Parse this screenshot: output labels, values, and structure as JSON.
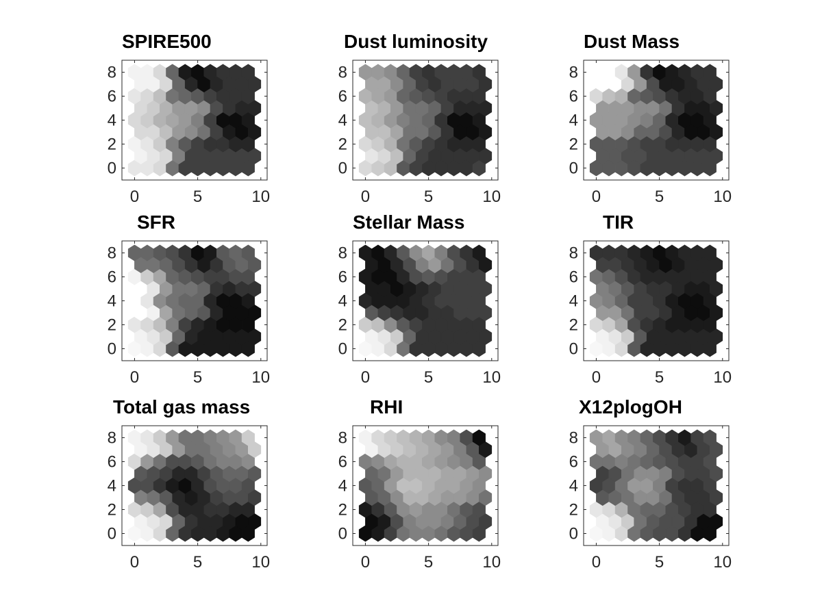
{
  "chart_data": [
    {
      "type": "heatmap",
      "title": "SPIRE500",
      "xlabel": "",
      "ylabel": "",
      "xlim": [
        -1,
        10.5
      ],
      "ylim": [
        -1,
        9
      ],
      "xticks": [
        0,
        5,
        10
      ],
      "yticks": [
        0,
        2,
        4,
        6,
        8
      ],
      "grid_size": [
        10,
        9
      ],
      "colormap": "gray",
      "value_range": [
        0,
        1
      ],
      "grid": [
        [
          0.9,
          0.9,
          0.85,
          0.45,
          0.25,
          0.25,
          0.25,
          0.25,
          0.25,
          0.25
        ],
        [
          0.95,
          0.9,
          0.85,
          0.5,
          0.25,
          0.25,
          0.25,
          0.25,
          0.25,
          0.25
        ],
        [
          0.95,
          0.9,
          0.8,
          0.5,
          0.35,
          0.25,
          0.2,
          0.2,
          0.15,
          0.15
        ],
        [
          0.85,
          0.85,
          0.75,
          0.6,
          0.55,
          0.45,
          0.25,
          0.1,
          0.05,
          0.1
        ],
        [
          0.85,
          0.8,
          0.7,
          0.65,
          0.6,
          0.5,
          0.25,
          0.05,
          0.05,
          0.1
        ],
        [
          0.85,
          0.8,
          0.7,
          0.6,
          0.6,
          0.55,
          0.3,
          0.2,
          0.15,
          0.15
        ],
        [
          0.9,
          0.85,
          0.75,
          0.45,
          0.4,
          0.35,
          0.25,
          0.2,
          0.2,
          0.2
        ],
        [
          0.95,
          0.95,
          0.85,
          0.4,
          0.15,
          0.05,
          0.15,
          0.2,
          0.2,
          0.2
        ],
        [
          0.95,
          0.95,
          0.85,
          0.4,
          0.1,
          0.05,
          0.15,
          0.2,
          0.2,
          0.2
        ]
      ]
    },
    {
      "type": "heatmap",
      "title": "Dust luminosity",
      "xlabel": "",
      "ylabel": "",
      "xlim": [
        -1,
        10.5
      ],
      "ylim": [
        -1,
        9
      ],
      "xticks": [
        0,
        5,
        10
      ],
      "yticks": [
        0,
        2,
        4,
        6,
        8
      ],
      "grid_size": [
        10,
        9
      ],
      "colormap": "gray",
      "value_range": [
        0,
        1
      ],
      "grid": [
        [
          0.85,
          0.8,
          0.75,
          0.35,
          0.25,
          0.2,
          0.2,
          0.2,
          0.2,
          0.25
        ],
        [
          0.9,
          0.85,
          0.75,
          0.4,
          0.25,
          0.2,
          0.2,
          0.2,
          0.2,
          0.2
        ],
        [
          0.85,
          0.8,
          0.7,
          0.45,
          0.35,
          0.25,
          0.2,
          0.15,
          0.15,
          0.15
        ],
        [
          0.75,
          0.75,
          0.65,
          0.45,
          0.45,
          0.35,
          0.2,
          0.05,
          0.05,
          0.1
        ],
        [
          0.75,
          0.7,
          0.6,
          0.5,
          0.45,
          0.4,
          0.2,
          0.05,
          0.05,
          0.1
        ],
        [
          0.75,
          0.7,
          0.6,
          0.45,
          0.45,
          0.4,
          0.25,
          0.15,
          0.15,
          0.15
        ],
        [
          0.7,
          0.65,
          0.6,
          0.4,
          0.35,
          0.3,
          0.25,
          0.2,
          0.2,
          0.2
        ],
        [
          0.65,
          0.65,
          0.55,
          0.4,
          0.25,
          0.2,
          0.25,
          0.25,
          0.25,
          0.2
        ],
        [
          0.6,
          0.6,
          0.55,
          0.4,
          0.25,
          0.2,
          0.25,
          0.25,
          0.25,
          0.2
        ]
      ]
    },
    {
      "type": "heatmap",
      "title": "Dust Mass",
      "xlabel": "",
      "ylabel": "",
      "xlim": [
        -1,
        10.5
      ],
      "ylim": [
        -1,
        9
      ],
      "xticks": [
        0,
        5,
        10
      ],
      "yticks": [
        0,
        2,
        4,
        6,
        8
      ],
      "grid_size": [
        10,
        9
      ],
      "colormap": "gray",
      "value_range": [
        0,
        1
      ],
      "grid": [
        [
          0.35,
          0.35,
          0.35,
          0.3,
          0.25,
          0.25,
          0.25,
          0.25,
          0.25,
          0.25
        ],
        [
          0.35,
          0.35,
          0.3,
          0.3,
          0.25,
          0.25,
          0.25,
          0.25,
          0.25,
          0.25
        ],
        [
          0.35,
          0.35,
          0.35,
          0.3,
          0.25,
          0.25,
          0.2,
          0.2,
          0.2,
          0.2
        ],
        [
          0.6,
          0.6,
          0.55,
          0.4,
          0.4,
          0.3,
          0.15,
          0.05,
          0.05,
          0.1
        ],
        [
          0.6,
          0.6,
          0.6,
          0.55,
          0.5,
          0.4,
          0.15,
          0.05,
          0.05,
          0.1
        ],
        [
          0.6,
          0.6,
          0.6,
          0.55,
          0.55,
          0.45,
          0.2,
          0.1,
          0.1,
          0.15
        ],
        [
          0.85,
          0.75,
          0.7,
          0.4,
          0.35,
          0.3,
          0.2,
          0.15,
          0.15,
          0.2
        ],
        [
          1.0,
          1.0,
          0.85,
          0.6,
          0.3,
          0.1,
          0.1,
          0.15,
          0.2,
          0.2
        ],
        [
          1.0,
          1.0,
          0.9,
          0.6,
          0.2,
          0.05,
          0.1,
          0.15,
          0.2,
          0.2
        ]
      ]
    },
    {
      "type": "heatmap",
      "title": "SFR",
      "xlabel": "",
      "ylabel": "",
      "xlim": [
        -1,
        10.5
      ],
      "ylim": [
        -1,
        9
      ],
      "xticks": [
        0,
        5,
        10
      ],
      "yticks": [
        0,
        2,
        4,
        6,
        8
      ],
      "grid_size": [
        10,
        9
      ],
      "colormap": "gray",
      "value_range": [
        0,
        1
      ],
      "grid": [
        [
          0.97,
          0.95,
          0.85,
          0.35,
          0.1,
          0.1,
          0.1,
          0.1,
          0.1,
          0.1
        ],
        [
          0.95,
          0.9,
          0.8,
          0.4,
          0.15,
          0.1,
          0.1,
          0.1,
          0.1,
          0.1
        ],
        [
          0.9,
          0.85,
          0.75,
          0.5,
          0.25,
          0.15,
          0.1,
          0.05,
          0.05,
          0.05
        ],
        [
          1.0,
          0.95,
          0.65,
          0.45,
          0.4,
          0.35,
          0.15,
          0.05,
          0.05,
          0.05
        ],
        [
          1.0,
          0.9,
          0.55,
          0.45,
          0.4,
          0.4,
          0.15,
          0.05,
          0.05,
          0.1
        ],
        [
          1.0,
          0.9,
          0.6,
          0.45,
          0.45,
          0.4,
          0.2,
          0.15,
          0.2,
          0.2
        ],
        [
          0.95,
          0.8,
          0.65,
          0.4,
          0.35,
          0.3,
          0.25,
          0.25,
          0.3,
          0.3
        ],
        [
          0.45,
          0.45,
          0.4,
          0.3,
          0.2,
          0.1,
          0.2,
          0.35,
          0.4,
          0.35
        ],
        [
          0.4,
          0.4,
          0.35,
          0.3,
          0.2,
          0.05,
          0.1,
          0.35,
          0.4,
          0.35
        ]
      ]
    },
    {
      "type": "heatmap",
      "title": "Stellar Mass",
      "xlabel": "",
      "ylabel": "",
      "xlim": [
        -1,
        10.5
      ],
      "ylim": [
        -1,
        9
      ],
      "xticks": [
        0,
        5,
        10
      ],
      "yticks": [
        0,
        2,
        4,
        6,
        8
      ],
      "grid_size": [
        10,
        9
      ],
      "colormap": "gray",
      "value_range": [
        0,
        1
      ],
      "grid": [
        [
          0.97,
          0.95,
          0.85,
          0.45,
          0.2,
          0.2,
          0.2,
          0.2,
          0.2,
          0.2
        ],
        [
          0.95,
          0.9,
          0.8,
          0.4,
          0.2,
          0.2,
          0.2,
          0.2,
          0.2,
          0.2
        ],
        [
          0.8,
          0.75,
          0.55,
          0.35,
          0.25,
          0.2,
          0.2,
          0.2,
          0.2,
          0.2
        ],
        [
          0.35,
          0.25,
          0.2,
          0.15,
          0.15,
          0.2,
          0.2,
          0.25,
          0.25,
          0.25
        ],
        [
          0.15,
          0.1,
          0.1,
          0.1,
          0.15,
          0.2,
          0.25,
          0.25,
          0.25,
          0.25
        ],
        [
          0.1,
          0.1,
          0.05,
          0.1,
          0.15,
          0.2,
          0.25,
          0.25,
          0.25,
          0.25
        ],
        [
          0.1,
          0.05,
          0.05,
          0.15,
          0.3,
          0.35,
          0.3,
          0.25,
          0.25,
          0.25
        ],
        [
          0.1,
          0.05,
          0.15,
          0.3,
          0.5,
          0.6,
          0.45,
          0.3,
          0.2,
          0.1
        ],
        [
          0.1,
          0.05,
          0.15,
          0.35,
          0.55,
          0.65,
          0.5,
          0.3,
          0.2,
          0.1
        ]
      ]
    },
    {
      "type": "heatmap",
      "title": "TIR",
      "xlabel": "",
      "ylabel": "",
      "xlim": [
        -1,
        10.5
      ],
      "ylim": [
        -1,
        9
      ],
      "xticks": [
        0,
        5,
        10
      ],
      "yticks": [
        0,
        2,
        4,
        6,
        8
      ],
      "grid_size": [
        10,
        9
      ],
      "colormap": "gray",
      "value_range": [
        0,
        1
      ],
      "grid": [
        [
          0.97,
          0.95,
          0.85,
          0.35,
          0.15,
          0.15,
          0.15,
          0.15,
          0.15,
          0.15
        ],
        [
          0.95,
          0.9,
          0.8,
          0.35,
          0.15,
          0.15,
          0.15,
          0.15,
          0.15,
          0.15
        ],
        [
          0.85,
          0.8,
          0.65,
          0.3,
          0.2,
          0.15,
          0.1,
          0.1,
          0.1,
          0.1
        ],
        [
          0.6,
          0.6,
          0.45,
          0.25,
          0.25,
          0.2,
          0.1,
          0.05,
          0.05,
          0.1
        ],
        [
          0.55,
          0.5,
          0.4,
          0.25,
          0.25,
          0.2,
          0.1,
          0.05,
          0.05,
          0.1
        ],
        [
          0.5,
          0.45,
          0.35,
          0.25,
          0.2,
          0.2,
          0.15,
          0.1,
          0.1,
          0.15
        ],
        [
          0.45,
          0.4,
          0.3,
          0.2,
          0.15,
          0.15,
          0.15,
          0.15,
          0.15,
          0.15
        ],
        [
          0.25,
          0.25,
          0.2,
          0.15,
          0.1,
          0.05,
          0.1,
          0.15,
          0.15,
          0.15
        ],
        [
          0.2,
          0.2,
          0.2,
          0.15,
          0.1,
          0.05,
          0.1,
          0.15,
          0.15,
          0.15
        ]
      ]
    },
    {
      "type": "heatmap",
      "title": "Total gas mass",
      "xlabel": "",
      "ylabel": "",
      "xlim": [
        -1,
        10.5
      ],
      "ylim": [
        -1,
        9
      ],
      "xticks": [
        0,
        5,
        10
      ],
      "yticks": [
        0,
        2,
        4,
        6,
        8
      ],
      "grid_size": [
        10,
        9
      ],
      "colormap": "gray",
      "value_range": [
        0,
        1
      ],
      "grid": [
        [
          0.97,
          0.95,
          0.85,
          0.4,
          0.2,
          0.15,
          0.15,
          0.1,
          0.05,
          0.05
        ],
        [
          0.95,
          0.9,
          0.85,
          0.4,
          0.2,
          0.15,
          0.15,
          0.1,
          0.05,
          0.05
        ],
        [
          0.85,
          0.8,
          0.65,
          0.3,
          0.15,
          0.15,
          0.2,
          0.2,
          0.15,
          0.15
        ],
        [
          0.5,
          0.45,
          0.35,
          0.15,
          0.1,
          0.15,
          0.25,
          0.3,
          0.3,
          0.25
        ],
        [
          0.3,
          0.3,
          0.2,
          0.1,
          0.05,
          0.15,
          0.3,
          0.35,
          0.35,
          0.3
        ],
        [
          0.35,
          0.3,
          0.25,
          0.15,
          0.15,
          0.25,
          0.35,
          0.4,
          0.4,
          0.35
        ],
        [
          0.85,
          0.6,
          0.45,
          0.3,
          0.3,
          0.35,
          0.45,
          0.5,
          0.5,
          0.55
        ],
        [
          0.95,
          0.9,
          0.8,
          0.6,
          0.45,
          0.45,
          0.5,
          0.55,
          0.6,
          0.8
        ],
        [
          0.95,
          0.9,
          0.8,
          0.6,
          0.45,
          0.45,
          0.5,
          0.55,
          0.6,
          0.8
        ]
      ]
    },
    {
      "type": "heatmap",
      "title": "RHI",
      "xlabel": "",
      "ylabel": "",
      "xlim": [
        -1,
        10.5
      ],
      "ylim": [
        -1,
        9
      ],
      "xticks": [
        0,
        5,
        10
      ],
      "yticks": [
        0,
        2,
        4,
        6,
        8
      ],
      "grid_size": [
        10,
        9
      ],
      "colormap": "gray",
      "value_range": [
        0,
        1
      ],
      "grid": [
        [
          0.05,
          0.1,
          0.25,
          0.45,
          0.5,
          0.5,
          0.45,
          0.35,
          0.3,
          0.25
        ],
        [
          0.05,
          0.1,
          0.3,
          0.5,
          0.55,
          0.55,
          0.5,
          0.4,
          0.3,
          0.25
        ],
        [
          0.1,
          0.2,
          0.35,
          0.55,
          0.6,
          0.55,
          0.55,
          0.45,
          0.35,
          0.3
        ],
        [
          0.35,
          0.4,
          0.55,
          0.7,
          0.7,
          0.65,
          0.6,
          0.6,
          0.55,
          0.45
        ],
        [
          0.35,
          0.4,
          0.6,
          0.75,
          0.75,
          0.7,
          0.65,
          0.65,
          0.6,
          0.55
        ],
        [
          0.4,
          0.45,
          0.6,
          0.7,
          0.7,
          0.7,
          0.65,
          0.65,
          0.6,
          0.55
        ],
        [
          0.5,
          0.55,
          0.65,
          0.7,
          0.7,
          0.65,
          0.6,
          0.55,
          0.5,
          0.35
        ],
        [
          0.95,
          0.85,
          0.8,
          0.75,
          0.7,
          0.65,
          0.6,
          0.5,
          0.35,
          0.1
        ],
        [
          0.95,
          0.85,
          0.8,
          0.75,
          0.7,
          0.65,
          0.55,
          0.5,
          0.3,
          0.05
        ]
      ]
    },
    {
      "type": "heatmap",
      "title": "X12plogOH",
      "xlabel": "",
      "ylabel": "",
      "xlim": [
        -1,
        10.5
      ],
      "ylim": [
        -1,
        9
      ],
      "xticks": [
        0,
        5,
        10
      ],
      "yticks": [
        0,
        2,
        4,
        6,
        8
      ],
      "grid_size": [
        10,
        9
      ],
      "colormap": "gray",
      "value_range": [
        0,
        1
      ],
      "grid": [
        [
          0.97,
          0.95,
          0.85,
          0.45,
          0.35,
          0.3,
          0.3,
          0.2,
          0.05,
          0.05
        ],
        [
          0.95,
          0.9,
          0.8,
          0.45,
          0.35,
          0.3,
          0.3,
          0.2,
          0.05,
          0.05
        ],
        [
          0.9,
          0.85,
          0.7,
          0.45,
          0.4,
          0.4,
          0.3,
          0.25,
          0.2,
          0.2
        ],
        [
          0.35,
          0.4,
          0.45,
          0.55,
          0.55,
          0.45,
          0.25,
          0.2,
          0.2,
          0.25
        ],
        [
          0.25,
          0.3,
          0.45,
          0.6,
          0.6,
          0.5,
          0.25,
          0.2,
          0.2,
          0.25
        ],
        [
          0.25,
          0.3,
          0.45,
          0.55,
          0.55,
          0.5,
          0.3,
          0.25,
          0.25,
          0.3
        ],
        [
          0.45,
          0.45,
          0.5,
          0.45,
          0.4,
          0.35,
          0.3,
          0.25,
          0.25,
          0.3
        ],
        [
          0.6,
          0.65,
          0.55,
          0.5,
          0.4,
          0.3,
          0.2,
          0.15,
          0.25,
          0.3
        ],
        [
          0.6,
          0.65,
          0.55,
          0.5,
          0.4,
          0.3,
          0.2,
          0.1,
          0.25,
          0.3
        ]
      ]
    }
  ]
}
